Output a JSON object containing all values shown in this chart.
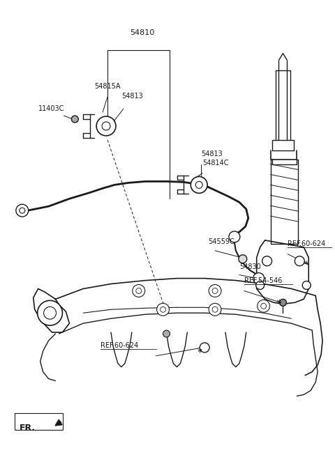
{
  "bg_color": "#ffffff",
  "line_color": "#1a1a1a",
  "figsize": [
    4.8,
    6.56
  ],
  "dpi": 100,
  "label_54810": "54810",
  "label_54815A": "54815A",
  "label_11403C": "11403C",
  "label_54813a": "54813",
  "label_54813b": "54813",
  "label_54814C": "54814C",
  "label_54559C": "54559C",
  "label_54830": "54830",
  "label_ref54546": "REF.54-546",
  "label_ref60624a": "REF.60-624",
  "label_ref60624b": "REF.60-624",
  "label_FR": "FR.",
  "fs_main": 8,
  "fs_ref": 7,
  "fs_fr": 9
}
